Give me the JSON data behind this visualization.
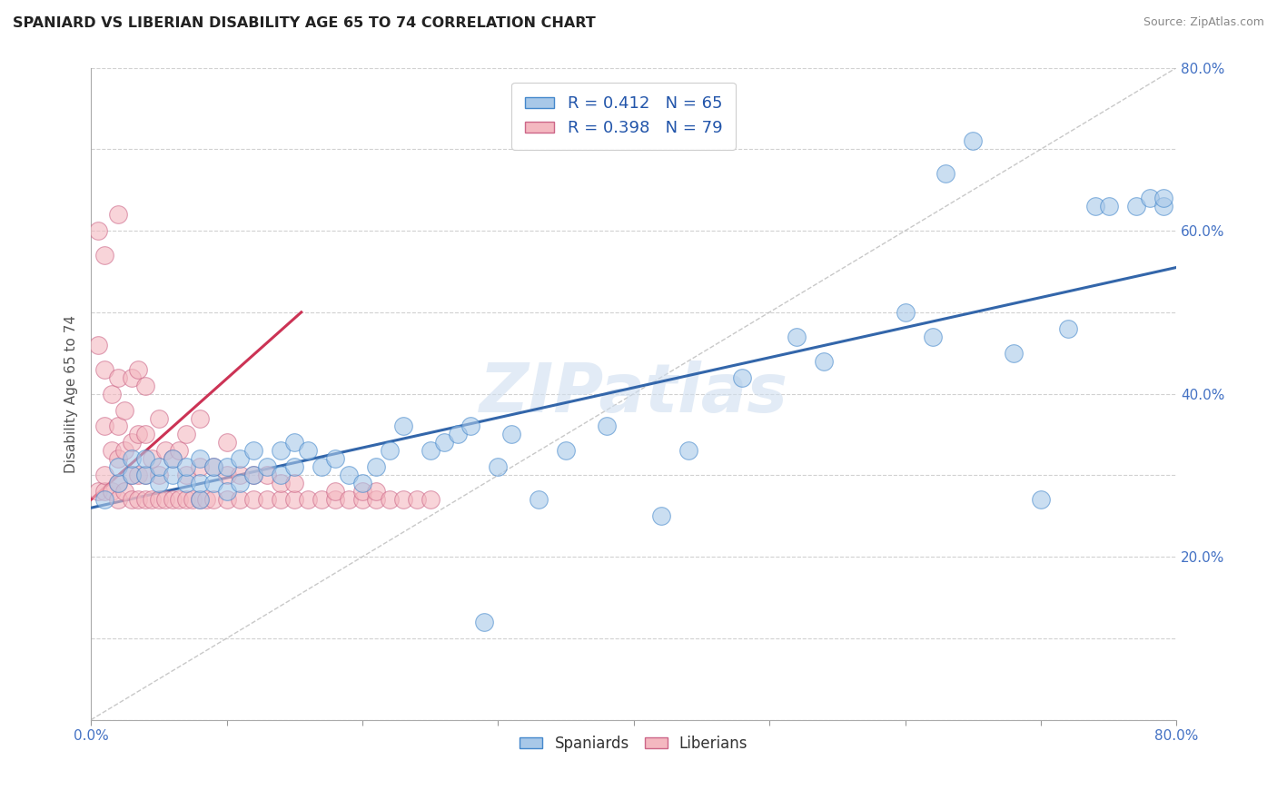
{
  "title": "SPANIARD VS LIBERIAN DISABILITY AGE 65 TO 74 CORRELATION CHART",
  "source_text": "Source: ZipAtlas.com",
  "ylabel": "Disability Age 65 to 74",
  "xlim": [
    0.0,
    0.8
  ],
  "ylim": [
    0.0,
    0.8
  ],
  "xticks": [
    0.0,
    0.1,
    0.2,
    0.3,
    0.4,
    0.5,
    0.6,
    0.7,
    0.8
  ],
  "yticks": [
    0.0,
    0.1,
    0.2,
    0.3,
    0.4,
    0.5,
    0.6,
    0.7,
    0.8
  ],
  "blue_R": 0.412,
  "blue_N": 65,
  "pink_R": 0.398,
  "pink_N": 79,
  "blue_color": "#a8c8e8",
  "pink_color": "#f4b8c0",
  "blue_edge_color": "#4488cc",
  "pink_edge_color": "#cc6688",
  "blue_line_color": "#3366aa",
  "pink_line_color": "#cc3355",
  "ref_line_color": "#bbbbbb",
  "watermark": "ZIPatlas",
  "watermark_color": "#d0dff0",
  "legend_blue_label": "Spaniards",
  "legend_pink_label": "Liberians",
  "blue_trend_x": [
    0.0,
    0.8
  ],
  "blue_trend_y": [
    0.26,
    0.555
  ],
  "pink_trend_x": [
    0.0,
    0.155
  ],
  "pink_trend_y": [
    0.27,
    0.5
  ],
  "blue_scatter_x": [
    0.01,
    0.02,
    0.02,
    0.03,
    0.03,
    0.04,
    0.04,
    0.05,
    0.05,
    0.06,
    0.06,
    0.07,
    0.07,
    0.08,
    0.08,
    0.08,
    0.09,
    0.09,
    0.1,
    0.1,
    0.11,
    0.11,
    0.12,
    0.12,
    0.13,
    0.14,
    0.14,
    0.15,
    0.15,
    0.16,
    0.17,
    0.18,
    0.19,
    0.2,
    0.21,
    0.22,
    0.23,
    0.25,
    0.26,
    0.27,
    0.28,
    0.29,
    0.3,
    0.31,
    0.33,
    0.35,
    0.38,
    0.42,
    0.44,
    0.48,
    0.52,
    0.54,
    0.6,
    0.62,
    0.63,
    0.65,
    0.68,
    0.7,
    0.72,
    0.74,
    0.75,
    0.77,
    0.78,
    0.79,
    0.79
  ],
  "blue_scatter_y": [
    0.27,
    0.29,
    0.31,
    0.3,
    0.32,
    0.3,
    0.32,
    0.29,
    0.31,
    0.3,
    0.32,
    0.29,
    0.31,
    0.27,
    0.29,
    0.32,
    0.29,
    0.31,
    0.28,
    0.31,
    0.29,
    0.32,
    0.3,
    0.33,
    0.31,
    0.3,
    0.33,
    0.31,
    0.34,
    0.33,
    0.31,
    0.32,
    0.3,
    0.29,
    0.31,
    0.33,
    0.36,
    0.33,
    0.34,
    0.35,
    0.36,
    0.12,
    0.31,
    0.35,
    0.27,
    0.33,
    0.36,
    0.25,
    0.33,
    0.42,
    0.47,
    0.44,
    0.5,
    0.47,
    0.67,
    0.71,
    0.45,
    0.27,
    0.48,
    0.63,
    0.63,
    0.63,
    0.64,
    0.63,
    0.64
  ],
  "pink_scatter_x": [
    0.005,
    0.005,
    0.005,
    0.01,
    0.01,
    0.01,
    0.01,
    0.01,
    0.015,
    0.015,
    0.015,
    0.02,
    0.02,
    0.02,
    0.02,
    0.02,
    0.02,
    0.025,
    0.025,
    0.025,
    0.03,
    0.03,
    0.03,
    0.03,
    0.035,
    0.035,
    0.035,
    0.035,
    0.04,
    0.04,
    0.04,
    0.04,
    0.045,
    0.045,
    0.05,
    0.05,
    0.05,
    0.055,
    0.055,
    0.06,
    0.06,
    0.065,
    0.065,
    0.07,
    0.07,
    0.07,
    0.075,
    0.08,
    0.08,
    0.08,
    0.085,
    0.09,
    0.09,
    0.1,
    0.1,
    0.1,
    0.11,
    0.11,
    0.12,
    0.12,
    0.13,
    0.13,
    0.14,
    0.14,
    0.15,
    0.15,
    0.16,
    0.17,
    0.18,
    0.18,
    0.19,
    0.2,
    0.2,
    0.21,
    0.21,
    0.22,
    0.23,
    0.24,
    0.25
  ],
  "pink_scatter_y": [
    0.28,
    0.46,
    0.6,
    0.28,
    0.3,
    0.36,
    0.43,
    0.57,
    0.28,
    0.33,
    0.4,
    0.27,
    0.29,
    0.32,
    0.36,
    0.42,
    0.62,
    0.28,
    0.33,
    0.38,
    0.27,
    0.3,
    0.34,
    0.42,
    0.27,
    0.3,
    0.35,
    0.43,
    0.27,
    0.3,
    0.35,
    0.41,
    0.27,
    0.32,
    0.27,
    0.3,
    0.37,
    0.27,
    0.33,
    0.27,
    0.32,
    0.27,
    0.33,
    0.27,
    0.3,
    0.35,
    0.27,
    0.27,
    0.31,
    0.37,
    0.27,
    0.27,
    0.31,
    0.27,
    0.3,
    0.34,
    0.27,
    0.3,
    0.27,
    0.3,
    0.27,
    0.3,
    0.27,
    0.29,
    0.27,
    0.29,
    0.27,
    0.27,
    0.27,
    0.28,
    0.27,
    0.27,
    0.28,
    0.27,
    0.28,
    0.27,
    0.27,
    0.27,
    0.27
  ]
}
